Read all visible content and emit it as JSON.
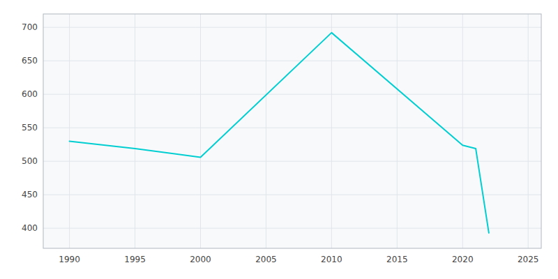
{
  "chart_data": {
    "type": "line",
    "x": [
      1990,
      1995,
      2000,
      2010,
      2020,
      2021,
      2022
    ],
    "values": [
      530,
      519,
      506,
      692,
      524,
      519,
      393
    ],
    "color": "#00CED1",
    "xlim": [
      1988,
      2026
    ],
    "ylim": [
      370,
      720
    ],
    "xticks": [
      1990,
      1995,
      2000,
      2005,
      2010,
      2015,
      2020,
      2025
    ],
    "yticks": [
      400,
      450,
      500,
      550,
      600,
      650,
      700
    ],
    "grid": true
  }
}
